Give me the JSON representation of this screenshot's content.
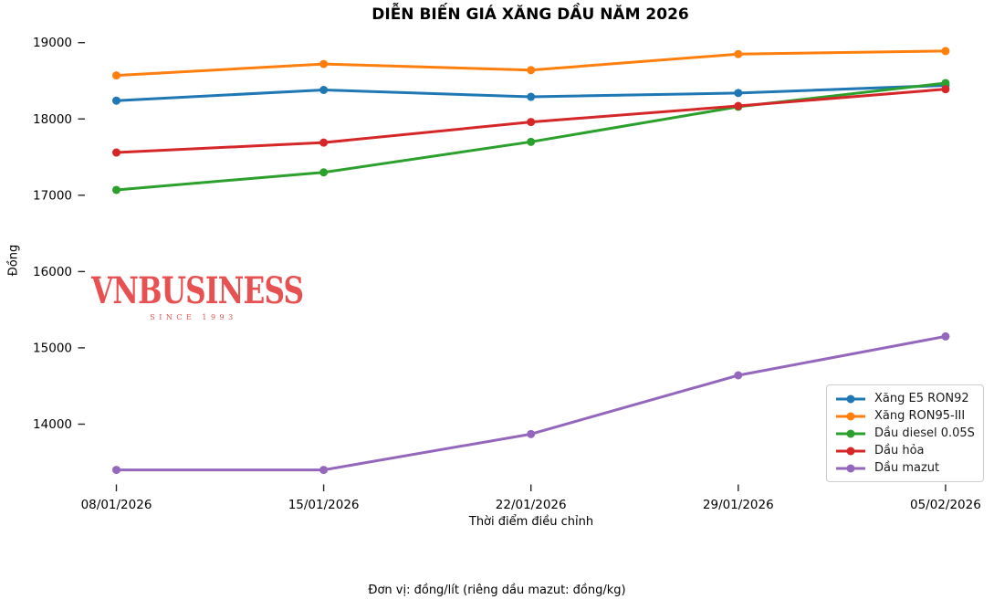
{
  "title": "DIỄN BIẾN GIÁ XĂNG DẦU NĂM 2026",
  "footer": "Đơn vị: đồng/lít (riêng dầu mazut: đồng/kg)",
  "watermark": {
    "text": "VNBUSINESS",
    "subtext": "SINCE 1993",
    "color": "#e85151"
  },
  "chart_data": {
    "type": "line",
    "title": "DIỄN BIẾN GIÁ XĂNG DẦU NĂM 2026",
    "xlabel": "Thời điểm điều chỉnh",
    "ylabel": "Đồng",
    "x": [
      "08/01/2026",
      "15/01/2026",
      "22/01/2026",
      "29/01/2026",
      "05/02/2026"
    ],
    "y_ticks": [
      19000,
      18000,
      17000,
      16000,
      15000,
      14000
    ],
    "ylim": [
      13300,
      19150
    ],
    "grid": false,
    "legend_position": "lower right",
    "series": [
      {
        "name": "Xăng E5 RON92",
        "color": "#1f77b4",
        "values": [
          18240,
          18380,
          18290,
          18340,
          18440
        ]
      },
      {
        "name": "Xăng RON95-III",
        "color": "#ff7f0e",
        "values": [
          18570,
          18720,
          18640,
          18850,
          18890
        ]
      },
      {
        "name": "Dầu diesel 0.05S",
        "color": "#2ca02c",
        "values": [
          17070,
          17300,
          17700,
          18160,
          18470
        ]
      },
      {
        "name": "Dầu hỏa",
        "color": "#d62728",
        "values": [
          17560,
          17690,
          17960,
          18170,
          18390
        ]
      },
      {
        "name": "Dầu mazut",
        "color": "#9467bd",
        "values": [
          13400,
          13400,
          13870,
          14640,
          15150
        ]
      }
    ]
  }
}
